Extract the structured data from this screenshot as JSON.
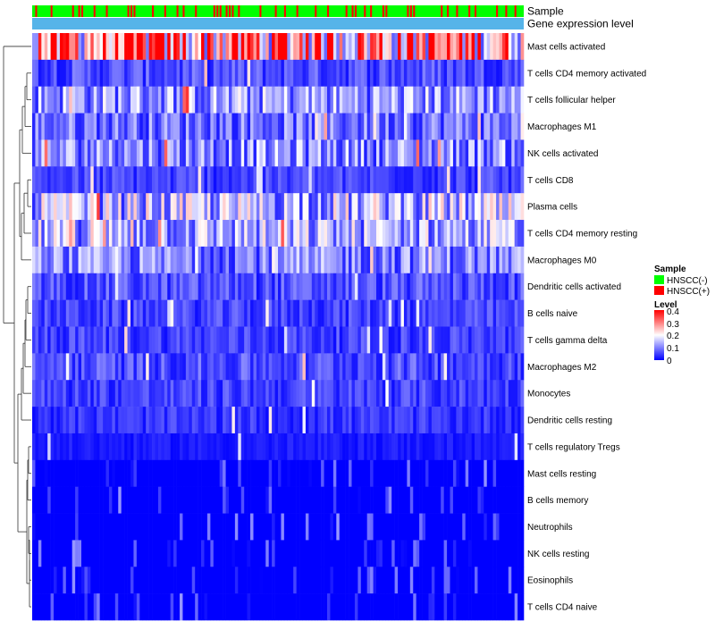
{
  "chart_data": {
    "type": "heatmap",
    "title": "",
    "annotation_rows": {
      "sample_label": "Sample",
      "gene_label": "Gene expression level"
    },
    "rows": [
      "Mast cells activated",
      "T cells CD4 memory activated",
      "T cells follicular helper",
      "Macrophages M1",
      "NK cells activated",
      "T cells CD8",
      "Plasma cells",
      "T cells CD4 memory resting",
      "Macrophages M0",
      "Dendritic cells activated",
      "B cells naive",
      "T cells gamma delta",
      "Macrophages M2",
      "Monocytes",
      "Dendritic cells resting",
      "T cells regulatory  Tregs",
      "Mast cells resting",
      "B cells memory",
      "Neutrophils",
      "NK cells resting",
      "Eosinophils",
      "T cells CD4 naive"
    ],
    "row_mean_level": [
      0.28,
      0.06,
      0.12,
      0.09,
      0.11,
      0.05,
      0.14,
      0.13,
      0.1,
      0.06,
      0.05,
      0.05,
      0.06,
      0.05,
      0.04,
      0.02,
      0.01,
      0.01,
      0.01,
      0.005,
      0.005,
      0.005
    ],
    "n_samples": 160,
    "color_scale": {
      "low": "#0000ff",
      "mid": "#ffffff",
      "high": "#ff0000",
      "range": [
        0,
        0.4
      ]
    },
    "legend": {
      "sample_title": "Sample",
      "sample_items": [
        {
          "label": "HNSCC(-)",
          "color": "#00ff00"
        },
        {
          "label": "HNSCC(+)",
          "color": "#ff0000"
        }
      ],
      "level_title": "Level",
      "level_ticks": [
        "0.4",
        "0.3",
        "0.2",
        "0.1",
        "0"
      ]
    },
    "gene_bar_color": "#56b4e9"
  }
}
